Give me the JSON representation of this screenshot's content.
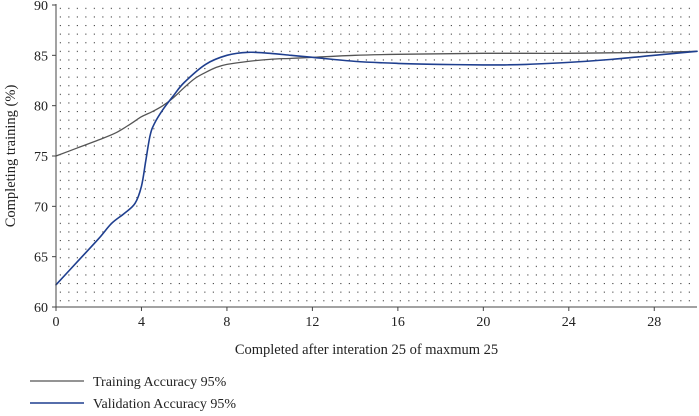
{
  "chart_data": {
    "type": "line",
    "xlabel": "Completed after interation 25 of maxmum 25",
    "ylabel": "Completing training (%)",
    "xlim": [
      0,
      30
    ],
    "ylim": [
      60,
      90
    ],
    "x_ticks": [
      "0",
      "4",
      "8",
      "12",
      "16",
      "20",
      "24",
      "28"
    ],
    "y_ticks": [
      "60",
      "65",
      "70",
      "75",
      "80",
      "85",
      "90"
    ],
    "grid": true,
    "legend_placement": "bottom-left",
    "series": [
      {
        "name": "Training Accuracy 95%",
        "color": "#555555",
        "x": [
          0,
          1,
          2,
          2.8,
          3.5,
          4,
          4.5,
          5,
          5.5,
          6,
          6.5,
          7,
          7.5,
          8,
          9,
          10,
          11,
          12,
          14,
          16,
          18,
          20,
          22,
          24,
          26,
          28,
          30
        ],
        "y": [
          75.0,
          75.8,
          76.6,
          77.3,
          78.2,
          78.9,
          79.4,
          80.0,
          80.8,
          81.8,
          82.7,
          83.3,
          83.8,
          84.1,
          84.4,
          84.6,
          84.7,
          84.8,
          85.0,
          85.1,
          85.15,
          85.2,
          85.2,
          85.2,
          85.25,
          85.3,
          85.4
        ]
      },
      {
        "name": "Validation Accuracy 95%",
        "color": "#1f3f8f",
        "x": [
          0,
          1,
          2,
          2.6,
          3.2,
          3.7,
          4.0,
          4.2,
          4.4,
          4.6,
          5.0,
          5.5,
          6,
          7,
          8,
          9,
          10,
          11,
          12,
          14,
          16,
          18,
          20,
          21,
          22,
          24,
          26,
          28,
          30
        ],
        "y": [
          62.2,
          64.5,
          66.8,
          68.3,
          69.3,
          70.3,
          72.0,
          74.5,
          77.0,
          78.2,
          79.6,
          81.0,
          82.3,
          84.1,
          85.0,
          85.3,
          85.2,
          85.0,
          84.8,
          84.4,
          84.2,
          84.1,
          84.05,
          84.05,
          84.1,
          84.3,
          84.6,
          85.0,
          85.4
        ]
      }
    ]
  }
}
